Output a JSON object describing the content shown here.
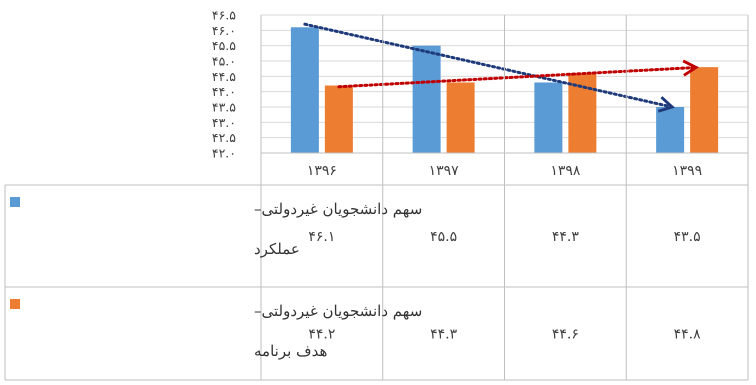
{
  "chart_data": {
    "type": "bar",
    "categories": [
      "۱۳۹۶",
      "۱۳۹۷",
      "۱۳۹۸",
      "۱۳۹۹"
    ],
    "y_ticks": [
      "۴۲.۰",
      "۴۲.۵",
      "۴۳.۰",
      "۴۳.۵",
      "۴۴.۰",
      "۴۴.۵",
      "۴۵.۰",
      "۴۵.۵",
      "۴۶.۰",
      "۴۶.۵"
    ],
    "ylim": [
      42.0,
      46.5
    ],
    "grid": true,
    "legend_placement": "data-table-left",
    "series": [
      {
        "name_line1": "سهم دانشجویان غیردولتی–",
        "name_line2": "عملکرد",
        "color": "#5B9BD5",
        "values": [
          46.1,
          45.5,
          44.3,
          43.5
        ],
        "value_labels": [
          "۴۶.۱",
          "۴۵.۵",
          "۴۴.۳",
          "۴۳.۵"
        ]
      },
      {
        "name_line1": "سهم دانشجویان غیردولتی–",
        "name_line2": "هدف برنامه",
        "color": "#ED7D31",
        "values": [
          44.2,
          44.3,
          44.6,
          44.8
        ],
        "value_labels": [
          "۴۴.۲",
          "۴۴.۳",
          "۴۴.۶",
          "۴۴.۸"
        ]
      }
    ],
    "trendlines": [
      {
        "series_index": 0,
        "color": "#1F3A7A",
        "style": "dotted"
      },
      {
        "series_index": 1,
        "color": "#C00000",
        "style": "dotted"
      }
    ]
  }
}
